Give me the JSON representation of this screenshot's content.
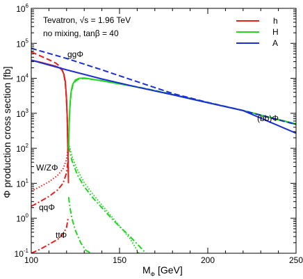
{
  "chart_data": {
    "type": "line",
    "x_axis": {
      "label_main": "M",
      "label_sub": "Φ",
      "label_unit": " [GeV]",
      "range": [
        100,
        250
      ],
      "ticks": [
        "100",
        "150",
        "200",
        "250"
      ]
    },
    "y_axis": {
      "label": "Φ production cross section [fb]",
      "scale": "log",
      "range": [
        0.1,
        1000000
      ],
      "tick_exponents": [
        "-1",
        "0",
        "1",
        "2",
        "3",
        "4",
        "5",
        "6"
      ]
    },
    "info_text": {
      "line1_main": "Tevatron, √s = 1.96 TeV",
      "line2_main": "no mixing, tan",
      "line2_beta": "β",
      "line2_rest": " = 40"
    },
    "legend": {
      "position": "top-right",
      "entries": [
        {
          "name": "h",
          "color": "#e8201c"
        },
        {
          "name": "H",
          "color": "#22d622"
        },
        {
          "name": "A",
          "color": "#1a2fd4"
        }
      ]
    },
    "annotations": {
      "ggPhi": "ggΦ",
      "bbPhi": "(bb)Φ",
      "WZPhi": "W/ZΦ",
      "qqPhi": "qqΦ",
      "ttPhi": "ttΦ"
    },
    "series": [
      {
        "name": "h",
        "process": "(bb)Φ",
        "style": "solid",
        "color": "#e8201c",
        "x": [
          100,
          105,
          110,
          114,
          116,
          117.5,
          118.5,
          119.3,
          119.9,
          120.3,
          120.6,
          120.85,
          121.05
        ],
        "y": [
          33000,
          29000,
          25000,
          22000,
          20000,
          17000,
          13000,
          8000,
          3000,
          900,
          200,
          40,
          10
        ]
      },
      {
        "name": "h",
        "process": "ggΦ",
        "style": "dashed",
        "color": "#e8201c",
        "x": [
          100,
          105,
          110,
          114,
          116,
          117.5,
          118.5,
          119.3,
          119.9,
          120.3,
          120.6,
          120.85,
          121.05
        ],
        "y": [
          57000,
          44000,
          34000,
          27000,
          22500,
          17500,
          12500,
          7000,
          2800,
          900,
          250,
          60,
          15
        ]
      },
      {
        "name": "h",
        "process": "W/ZΦ",
        "style": "dotted",
        "color": "#e8201c",
        "x": [
          100,
          105,
          110,
          115,
          118,
          120,
          121
        ],
        "y": [
          6,
          8,
          11,
          17,
          26,
          48,
          110
        ]
      },
      {
        "name": "h",
        "process": "qqΦ",
        "style": "dashdot",
        "color": "#e8201c",
        "x": [
          100,
          105,
          110,
          115,
          118,
          120,
          121
        ],
        "y": [
          2.2,
          3,
          4.2,
          6.5,
          10,
          20,
          55
        ]
      },
      {
        "name": "h",
        "process": "ttΦ",
        "style": "dashdot",
        "color": "#e8201c",
        "x": [
          100,
          105,
          110,
          115,
          118,
          120,
          121
        ],
        "y": [
          0.1,
          0.13,
          0.18,
          0.25,
          0.35,
          0.55,
          1.1
        ]
      },
      {
        "name": "H",
        "process": "(bb)Φ",
        "style": "solid",
        "color": "#22d622",
        "x": [
          121.2,
          121.5,
          122,
          122.6,
          123.5,
          125,
          127,
          130,
          140,
          150,
          160,
          170,
          180,
          200,
          220,
          250
        ],
        "y": [
          100,
          600,
          2000,
          4200,
          6800,
          9000,
          10000,
          10200,
          8500,
          6900,
          5600,
          4400,
          3400,
          2000,
          1200,
          500
        ]
      },
      {
        "name": "H",
        "process": "ggΦ",
        "style": "dashed",
        "color": "#22d622",
        "x": [
          121.2,
          121.5,
          122,
          122.6,
          123.5,
          125,
          127,
          130,
          140,
          150,
          160,
          170,
          180,
          200,
          220,
          250
        ],
        "y": [
          100,
          550,
          1800,
          3800,
          6200,
          8300,
          9500,
          10000,
          8600,
          7000,
          5700,
          4500,
          3500,
          2050,
          1200,
          480
        ]
      },
      {
        "name": "H",
        "process": "W/ZΦ",
        "style": "dotted",
        "color": "#22d622",
        "x": [
          121.2,
          123,
          126,
          130,
          135,
          140,
          145,
          150,
          156,
          161
        ],
        "y": [
          140,
          60,
          25,
          10.5,
          4.8,
          2.4,
          1.2,
          0.6,
          0.26,
          0.1
        ]
      },
      {
        "name": "H",
        "process": "qqΦ",
        "style": "dashdot",
        "color": "#22d622",
        "x": [
          121.2,
          123,
          126,
          130,
          135,
          140,
          145,
          150,
          156,
          165
        ],
        "y": [
          110,
          45,
          18,
          8,
          3.8,
          2.0,
          1.05,
          0.58,
          0.3,
          0.1
        ]
      },
      {
        "name": "H",
        "process": "ttΦ",
        "style": "dashdot",
        "color": "#22d622",
        "x": [
          121.2,
          121.8,
          123,
          125,
          128,
          131,
          134
        ],
        "y": [
          4,
          2.2,
          1.0,
          0.45,
          0.2,
          0.12,
          0.1
        ]
      },
      {
        "name": "A",
        "process": "(bb)Φ",
        "style": "solid",
        "color": "#1a2fd4",
        "x": [
          100,
          120,
          140,
          160,
          180,
          200,
          220,
          250
        ],
        "y": [
          33000,
          17500,
          9600,
          5600,
          3400,
          2000,
          1200,
          270
        ]
      },
      {
        "name": "A",
        "process": "ggΦ",
        "style": "dashed",
        "color": "#1a2fd4",
        "x": [
          100,
          120,
          140,
          160,
          180,
          200,
          220,
          250
        ],
        "y": [
          72000,
          37000,
          17500,
          8000,
          3700,
          2050,
          1200,
          480
        ]
      }
    ]
  }
}
